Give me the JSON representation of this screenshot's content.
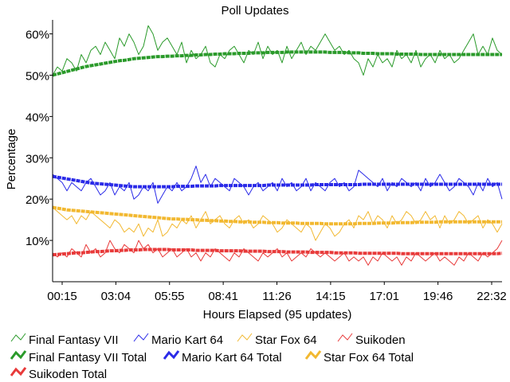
{
  "chart_data": {
    "type": "line",
    "title": "Poll Updates",
    "xlabel": "Hours Elapsed (95 updates)",
    "ylabel": "Percentage",
    "ylim": [
      0,
      63
    ],
    "x_ticks": [
      "00:15",
      "03:04",
      "05:55",
      "08:41",
      "11:26",
      "14:15",
      "17:01",
      "19:46",
      "22:32"
    ],
    "y_ticks": [
      {
        "value": 10,
        "label": "10%"
      },
      {
        "value": 20,
        "label": "20%"
      },
      {
        "value": 30,
        "label": "30%"
      },
      {
        "value": 40,
        "label": "40%"
      },
      {
        "value": 50,
        "label": "50%"
      },
      {
        "value": 60,
        "label": "60%"
      }
    ],
    "grid": false,
    "legend_position": "bottom",
    "series": [
      {
        "name": "Final Fantasy VII",
        "color": "#2a9a2a",
        "style": "thin",
        "values": [
          50,
          52,
          51,
          54,
          53,
          51,
          55,
          53,
          56,
          57,
          55,
          58,
          56,
          54,
          59,
          57,
          60,
          58,
          55,
          57,
          62,
          60,
          56,
          58,
          59,
          57,
          55,
          58,
          53,
          56,
          54,
          55,
          57,
          53,
          52,
          55,
          54,
          56,
          57,
          55,
          53,
          56,
          55,
          58,
          54,
          57,
          55,
          56,
          53,
          57,
          54,
          56,
          58,
          55,
          57,
          56,
          58,
          60,
          58,
          56,
          57,
          55,
          56,
          54,
          53,
          50,
          54,
          52,
          55,
          53,
          54,
          52,
          56,
          54,
          55,
          53,
          56,
          52,
          54,
          55,
          53,
          56,
          54,
          55,
          53,
          54,
          56,
          58,
          60,
          55,
          57,
          55,
          59,
          56,
          55
        ]
      },
      {
        "name": "Final Fantasy VII Total",
        "color": "#2a9a2a",
        "style": "thick",
        "values": [
          50,
          50.3,
          50.6,
          50.9,
          51.2,
          51.5,
          51.8,
          52.1,
          52.3,
          52.5,
          52.7,
          52.9,
          53.1,
          53.3,
          53.5,
          53.6,
          53.8,
          54,
          54.1,
          54.2,
          54.3,
          54.4,
          54.5,
          54.5,
          54.6,
          54.6,
          54.7,
          54.7,
          54.8,
          54.8,
          54.9,
          54.9,
          55,
          55,
          55.1,
          55.1,
          55.2,
          55.2,
          55.2,
          55.3,
          55.3,
          55.3,
          55.4,
          55.4,
          55.4,
          55.5,
          55.5,
          55.5,
          55.5,
          55.6,
          55.6,
          55.6,
          55.6,
          55.6,
          55.6,
          55.6,
          55.6,
          55.6,
          55.5,
          55.5,
          55.5,
          55.5,
          55.4,
          55.4,
          55.4,
          55.3,
          55.3,
          55.3,
          55.2,
          55.2,
          55.2,
          55.2,
          55.1,
          55.1,
          55.1,
          55.1,
          55.1,
          55,
          55,
          55,
          55,
          55,
          55,
          55,
          55,
          55,
          55,
          55,
          55,
          55,
          55,
          55,
          55,
          55,
          55
        ]
      },
      {
        "name": "Mario Kart 64",
        "color": "#2a2ae8",
        "style": "thin",
        "values": [
          26,
          25,
          24,
          22,
          24,
          23,
          22,
          24,
          25,
          23,
          21,
          22,
          24,
          21,
          23,
          22,
          24,
          20,
          21,
          23,
          22,
          24,
          19,
          21,
          23,
          22,
          24,
          22,
          23,
          25,
          28,
          24,
          26,
          23,
          25,
          24,
          23,
          22,
          25,
          24,
          23,
          21,
          23,
          24,
          22,
          23,
          24,
          22,
          25,
          23,
          24,
          22,
          23,
          25,
          22,
          24,
          23,
          22,
          24,
          25,
          23,
          24,
          22,
          23,
          27,
          26,
          25,
          24,
          23,
          25,
          22,
          24,
          23,
          25,
          24,
          23,
          24,
          22,
          25,
          23,
          24,
          26,
          24,
          22,
          23,
          25,
          24,
          23,
          21,
          24,
          22,
          25,
          23,
          24,
          20
        ]
      },
      {
        "name": "Mario Kart 64 Total",
        "color": "#2a2ae8",
        "style": "thick",
        "values": [
          25.5,
          25.3,
          25.1,
          24.9,
          24.7,
          24.5,
          24.3,
          24.1,
          23.9,
          23.8,
          23.7,
          23.6,
          23.5,
          23.4,
          23.3,
          23.2,
          23.1,
          23,
          23,
          23,
          23,
          23,
          23,
          23,
          23,
          23,
          23.1,
          23.1,
          23.1,
          23.1,
          23.2,
          23.2,
          23.2,
          23.2,
          23.2,
          23.3,
          23.3,
          23.3,
          23.3,
          23.3,
          23.3,
          23.3,
          23.3,
          23.3,
          23.3,
          23.4,
          23.4,
          23.4,
          23.4,
          23.4,
          23.4,
          23.4,
          23.4,
          23.4,
          23.4,
          23.5,
          23.5,
          23.5,
          23.5,
          23.5,
          23.5,
          23.5,
          23.5,
          23.5,
          23.5,
          23.6,
          23.6,
          23.6,
          23.6,
          23.6,
          23.6,
          23.6,
          23.6,
          23.6,
          23.6,
          23.6,
          23.6,
          23.6,
          23.6,
          23.6,
          23.6,
          23.6,
          23.6,
          23.6,
          23.6,
          23.6,
          23.6,
          23.6,
          23.6,
          23.6,
          23.6,
          23.6,
          23.6,
          23.6,
          23.6
        ]
      },
      {
        "name": "Star Fox 64",
        "color": "#f2b830",
        "style": "thin",
        "values": [
          18,
          17,
          16,
          15,
          16,
          14,
          16,
          15,
          17,
          16,
          15,
          14,
          13,
          15,
          14,
          12,
          13,
          12,
          14,
          11,
          13,
          12,
          15,
          11,
          12,
          14,
          13,
          15,
          14,
          16,
          13,
          15,
          17,
          14,
          15,
          16,
          14,
          13,
          15,
          16,
          14,
          15,
          13,
          14,
          16,
          15,
          14,
          12,
          13,
          15,
          14,
          13,
          12,
          14,
          13,
          10,
          12,
          14,
          13,
          11,
          12,
          14,
          15,
          13,
          16,
          15,
          17,
          14,
          16,
          15,
          13,
          16,
          14,
          15,
          17,
          16,
          14,
          15,
          17,
          15,
          16,
          13,
          16,
          14,
          15,
          17,
          16,
          14,
          15,
          16,
          13,
          15,
          14,
          12,
          14
        ]
      },
      {
        "name": "Star Fox 64 Total",
        "color": "#f2b830",
        "style": "thick",
        "values": [
          18,
          17.8,
          17.6,
          17.4,
          17.3,
          17.2,
          17.1,
          17,
          16.9,
          16.8,
          16.7,
          16.6,
          16.5,
          16.4,
          16.3,
          16.2,
          16.1,
          16,
          15.9,
          15.8,
          15.7,
          15.6,
          15.5,
          15.4,
          15.3,
          15.2,
          15.2,
          15.1,
          15.1,
          15,
          15,
          14.9,
          14.9,
          14.8,
          14.8,
          14.7,
          14.7,
          14.6,
          14.6,
          14.5,
          14.5,
          14.5,
          14.4,
          14.4,
          14.4,
          14.3,
          14.3,
          14.3,
          14.2,
          14.2,
          14.2,
          14.2,
          14.1,
          14.1,
          14.1,
          14.1,
          14.1,
          14,
          14,
          14,
          14,
          14,
          14,
          14,
          14.1,
          14.1,
          14.1,
          14.1,
          14.2,
          14.2,
          14.2,
          14.2,
          14.3,
          14.3,
          14.3,
          14.3,
          14.4,
          14.4,
          14.4,
          14.4,
          14.4,
          14.5,
          14.5,
          14.5,
          14.5,
          14.5,
          14.5,
          14.5,
          14.5,
          14.5,
          14.5,
          14.5,
          14.5,
          14.5,
          14.5
        ]
      },
      {
        "name": "Suikoden",
        "color": "#e83a3a",
        "style": "thin",
        "values": [
          7,
          6,
          7,
          6,
          8,
          7,
          6,
          9,
          7,
          8,
          6,
          7,
          10,
          8,
          7,
          9,
          8,
          7,
          10,
          8,
          9,
          7,
          8,
          6,
          7,
          8,
          6,
          7,
          8,
          6,
          7,
          5,
          7,
          6,
          8,
          7,
          6,
          5,
          7,
          6,
          8,
          7,
          6,
          5,
          7,
          6,
          7,
          8,
          6,
          7,
          5,
          6,
          7,
          6,
          8,
          7,
          6,
          7,
          6,
          5,
          6,
          7,
          5,
          6,
          5,
          6,
          4,
          6,
          5,
          7,
          6,
          5,
          6,
          4,
          6,
          5,
          7,
          6,
          5,
          6,
          7,
          5,
          6,
          5,
          4,
          6,
          5,
          7,
          6,
          5,
          7,
          6,
          7,
          8,
          10
        ]
      },
      {
        "name": "Suikoden Total",
        "color": "#e83a3a",
        "style": "thick",
        "values": [
          6.5,
          6.6,
          6.7,
          6.8,
          6.9,
          7,
          7,
          7.1,
          7.2,
          7.3,
          7.3,
          7.4,
          7.5,
          7.5,
          7.6,
          7.6,
          7.7,
          7.7,
          7.7,
          7.8,
          7.8,
          7.8,
          7.8,
          7.8,
          7.8,
          7.7,
          7.7,
          7.7,
          7.7,
          7.7,
          7.6,
          7.6,
          7.6,
          7.6,
          7.6,
          7.5,
          7.5,
          7.5,
          7.5,
          7.5,
          7.4,
          7.4,
          7.4,
          7.4,
          7.4,
          7.3,
          7.3,
          7.3,
          7.3,
          7.2,
          7.2,
          7.2,
          7.2,
          7.2,
          7.1,
          7.1,
          7.1,
          7.1,
          7.1,
          7,
          7,
          7,
          7,
          7,
          6.9,
          6.9,
          6.9,
          6.9,
          6.9,
          6.9,
          6.9,
          6.9,
          6.9,
          6.8,
          6.8,
          6.8,
          6.8,
          6.8,
          6.8,
          6.8,
          6.8,
          6.8,
          6.8,
          6.8,
          6.8,
          6.8,
          6.8,
          6.8,
          6.8,
          6.8,
          6.8,
          6.8,
          6.8,
          6.8,
          6.9
        ]
      }
    ]
  }
}
